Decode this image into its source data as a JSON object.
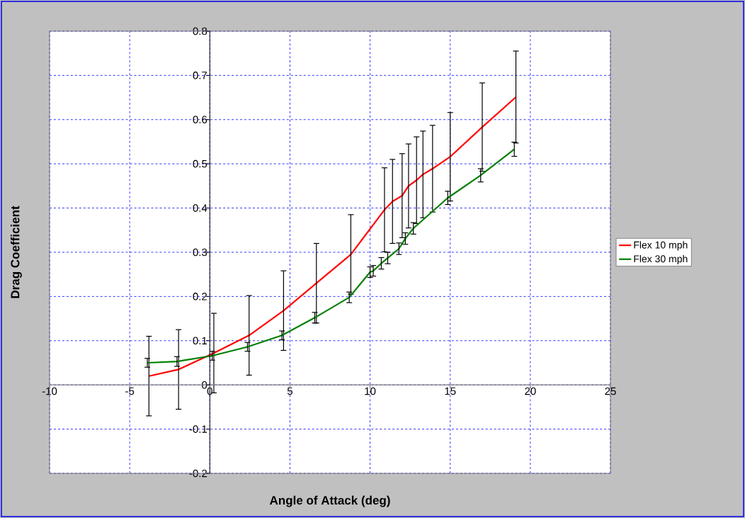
{
  "chart_data": {
    "type": "line",
    "xlabel": "Angle of Attack (deg)",
    "ylabel": "Drag Coefficient",
    "xlim": [
      -10,
      25
    ],
    "ylim": [
      -0.2,
      0.8
    ],
    "xticks": [
      -10,
      -5,
      0,
      5,
      10,
      15,
      20,
      25
    ],
    "yticks": [
      -0.2,
      -0.1,
      0,
      0.1,
      0.2,
      0.3,
      0.4,
      0.5,
      0.6,
      0.7,
      0.8
    ],
    "grid": true,
    "legend": "right",
    "line_style": "solid",
    "marker": "none",
    "series": [
      {
        "name": "Flex 10 mph",
        "color": "#ff0000",
        "x": [
          -3.8,
          -1.95,
          0.25,
          2.45,
          4.6,
          6.65,
          8.8,
          10.9,
          11.4,
          12.0,
          12.4,
          12.9,
          13.3,
          13.9,
          15.0,
          17.0,
          19.1
        ],
        "values": [
          0.02,
          0.035,
          0.072,
          0.112,
          0.168,
          0.23,
          0.295,
          0.396,
          0.415,
          0.428,
          0.45,
          0.463,
          0.476,
          0.489,
          0.516,
          0.583,
          0.651
        ],
        "errors": [
          0.09,
          0.09,
          0.09,
          0.09,
          0.09,
          0.09,
          0.09,
          0.095,
          0.095,
          0.095,
          0.095,
          0.098,
          0.098,
          0.098,
          0.1,
          0.1,
          0.104
        ]
      },
      {
        "name": "Flex 30 mph",
        "color": "#008000",
        "x": [
          -3.9,
          -2.05,
          0.15,
          2.35,
          4.5,
          6.55,
          8.7,
          10.0,
          10.2,
          10.7,
          11.1,
          11.8,
          12.2,
          12.7,
          14.85,
          16.9,
          19.0
        ],
        "values": [
          0.05,
          0.053,
          0.066,
          0.086,
          0.112,
          0.152,
          0.198,
          0.255,
          0.258,
          0.275,
          0.287,
          0.308,
          0.331,
          0.354,
          0.423,
          0.474,
          0.533
        ],
        "errors": [
          0.01,
          0.011,
          0.01,
          0.01,
          0.01,
          0.012,
          0.012,
          0.012,
          0.012,
          0.013,
          0.013,
          0.013,
          0.013,
          0.013,
          0.015,
          0.015,
          0.016
        ]
      }
    ]
  }
}
